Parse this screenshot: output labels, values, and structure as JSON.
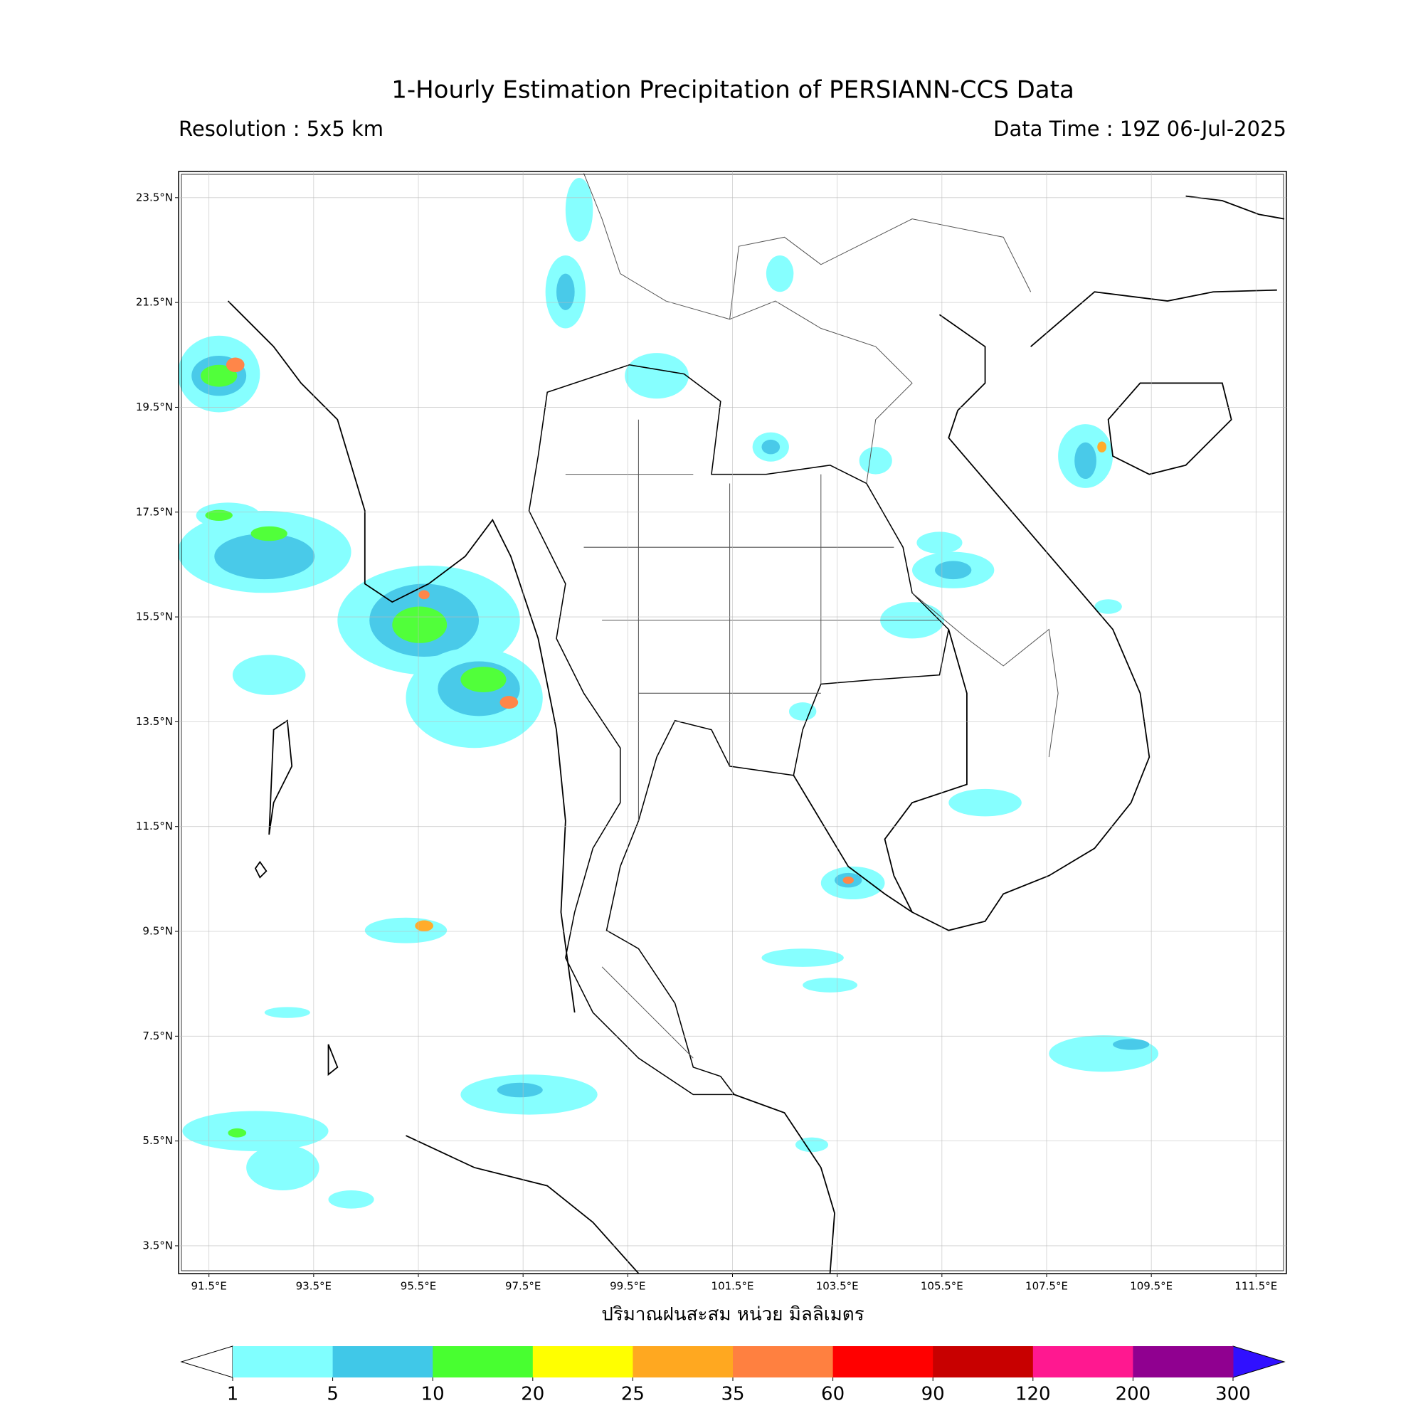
{
  "map": {
    "title": "1-Hourly Estimation Precipitation of PERSIANN-CCS Data",
    "resolution": "Resolution : 5x5 km",
    "data_time": "Data Time : 19Z 06-Jul-2025",
    "lon_lim": [
      90.92,
      112.08
    ],
    "lat_lim": [
      2.97,
      24.0
    ],
    "lon_ticks": [
      {
        "value": 91.5,
        "label": "91.5°E"
      },
      {
        "value": 93.5,
        "label": "93.5°E"
      },
      {
        "value": 95.5,
        "label": "95.5°E"
      },
      {
        "value": 97.5,
        "label": "97.5°E"
      },
      {
        "value": 99.5,
        "label": "99.5°E"
      },
      {
        "value": 101.5,
        "label": "101.5°E"
      },
      {
        "value": 103.5,
        "label": "103.5°E"
      },
      {
        "value": 105.5,
        "label": "105.5°E"
      },
      {
        "value": 107.5,
        "label": "107.5°E"
      },
      {
        "value": 109.5,
        "label": "109.5°E"
      },
      {
        "value": 111.5,
        "label": "111.5°E"
      }
    ],
    "lat_ticks": [
      {
        "value": 23.5,
        "label": "23.5°N"
      },
      {
        "value": 21.5,
        "label": "21.5°N"
      },
      {
        "value": 19.5,
        "label": "19.5°N"
      },
      {
        "value": 17.5,
        "label": "17.5°N"
      },
      {
        "value": 15.5,
        "label": "15.5°N"
      },
      {
        "value": 13.5,
        "label": "13.5°N"
      },
      {
        "value": 11.5,
        "label": "11.5°N"
      },
      {
        "value": 9.5,
        "label": "9.5°N"
      },
      {
        "value": 7.5,
        "label": "7.5°N"
      },
      {
        "value": 5.5,
        "label": "5.5°N"
      },
      {
        "value": 3.5,
        "label": "3.5°N"
      }
    ],
    "grid": true,
    "x_label": "ปริมาณฝนสะสม หน่วย มิลลิเมตร",
    "colorbar": {
      "ticks": [
        1,
        5,
        10,
        20,
        25,
        35,
        60,
        90,
        120,
        200,
        300
      ],
      "colors": [
        "#80ffff",
        "#40c8e8",
        "#48ff30",
        "#ffff00",
        "#ffa820",
        "#ff8040",
        "#ff0000",
        "#c80000",
        "#ff1890",
        "#900090"
      ],
      "under_color": "#ffffff",
      "over_color": "#3010ff"
    }
  }
}
